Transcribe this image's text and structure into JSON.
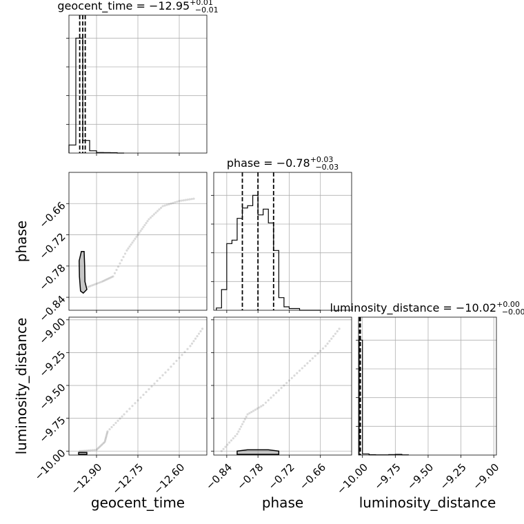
{
  "chart_data": {
    "type": "corner",
    "parameters": [
      "geocent_time",
      "phase",
      "luminosity_distance"
    ],
    "ranges": {
      "geocent_time": [
        -13.0,
        -12.5
      ],
      "phase": [
        -0.865,
        -0.6
      ],
      "luminosity_distance": [
        -10.03,
        -8.98
      ],
      "hist_count_max": [
        0,
        1
      ]
    },
    "titles": [
      {
        "base": "geocent_time = −12.95",
        "upper": "+0.01",
        "lower": "−0.01"
      },
      {
        "base": "phase = −0.78",
        "upper": "+0.03",
        "lower": "−0.03"
      },
      {
        "base": "luminosity_distance = −10.02",
        "upper": "+0.00",
        "lower": "−0.00"
      }
    ],
    "axis_labels": {
      "geocent_time": "geocent_time",
      "phase": "phase",
      "luminosity_distance": "luminosity_distance"
    },
    "ticks": {
      "geocent_time": {
        "values": [
          -12.9,
          -12.75,
          -12.6
        ],
        "labels": [
          "−12.90",
          "−12.75",
          "−12.60"
        ]
      },
      "phase": {
        "values": [
          -0.84,
          -0.78,
          -0.72,
          -0.66
        ],
        "labels": [
          "−0.84",
          "−0.78",
          "−0.72",
          "−0.66"
        ]
      },
      "luminosity_distance": {
        "values": [
          -10.0,
          -9.75,
          -9.5,
          -9.25,
          -9.0
        ],
        "labels": [
          "−10.00",
          "−9.75",
          "−9.50",
          "−9.25",
          "−9.00"
        ]
      },
      "hist_count": {
        "values": [
          0.25,
          0.5,
          0.75,
          1.0
        ]
      }
    },
    "histograms": {
      "geocent_time": {
        "edges": [
          -13.0,
          -12.975,
          -12.95,
          -12.925,
          -12.9,
          -12.875,
          -12.85,
          -12.825,
          -12.8
        ],
        "counts": [
          0.07,
          1.0,
          0.11,
          0.02,
          0.005,
          0.004,
          0.003,
          0,
          0
        ]
      },
      "phase": {
        "edges": [
          -0.86,
          -0.85,
          -0.84,
          -0.83,
          -0.82,
          -0.81,
          -0.8,
          -0.79,
          -0.78,
          -0.77,
          -0.76,
          -0.75,
          -0.74,
          -0.73,
          -0.72,
          -0.71,
          -0.7,
          -0.69,
          -0.68,
          -0.67,
          -0.66
        ],
        "counts": [
          0.02,
          0.18,
          0.58,
          0.61,
          0.8,
          0.89,
          0.91,
          1.0,
          0.83,
          0.88,
          0.76,
          0.52,
          0.11,
          0.03,
          0.015,
          0.015,
          0.0,
          0.0,
          0.0,
          0.0
        ]
      },
      "luminosity_distance": {
        "edges": [
          -10.025,
          -10.0,
          -9.95,
          -9.9,
          -9.85,
          -9.8,
          -9.75,
          -9.7,
          -9.65
        ],
        "counts": [
          1.0,
          0.01,
          0.003,
          0.002,
          0.002,
          0.004,
          0.006,
          0.002
        ]
      }
    },
    "quantiles": {
      "geocent_time": [
        -12.961,
        -12.95,
        -12.941
      ],
      "phase": [
        -0.81,
        -0.78,
        -0.75
      ],
      "luminosity_distance": [
        -10.022,
        -10.02,
        -10.016
      ]
    },
    "contours_2d": {
      "geocent_time_phase": [
        [
          -12.955,
          -0.752
        ],
        [
          -12.945,
          -0.752
        ],
        [
          -12.943,
          -0.78
        ],
        [
          -12.942,
          -0.81
        ],
        [
          -12.935,
          -0.825
        ],
        [
          -12.948,
          -0.832
        ],
        [
          -12.958,
          -0.828
        ],
        [
          -12.962,
          -0.8
        ],
        [
          -12.963,
          -0.77
        ]
      ],
      "geocent_time_luminosity_distance": [
        [
          -12.965,
          -10.01
        ],
        [
          -12.935,
          -10.01
        ],
        [
          -12.935,
          -10.025
        ],
        [
          -12.965,
          -10.025
        ]
      ],
      "phase_luminosity_distance": [
        [
          -0.82,
          -10.0
        ],
        [
          -0.8,
          -9.99
        ],
        [
          -0.76,
          -9.99
        ],
        [
          -0.74,
          -10.0
        ],
        [
          -0.74,
          -10.025
        ],
        [
          -0.82,
          -10.025
        ]
      ]
    },
    "outlier_tracks": {
      "geocent_time_phase": [
        [
          -12.93,
          -0.82
        ],
        [
          -12.88,
          -0.81
        ],
        [
          -12.84,
          -0.8
        ],
        [
          -12.79,
          -0.75
        ],
        [
          -12.75,
          -0.72
        ],
        [
          -12.71,
          -0.69
        ],
        [
          -12.66,
          -0.665
        ],
        [
          -12.6,
          -0.655
        ],
        [
          -12.54,
          -0.65
        ]
      ],
      "geocent_time_luminosity_distance": [
        [
          -12.96,
          -10.0
        ],
        [
          -12.9,
          -9.99
        ],
        [
          -12.87,
          -9.93
        ],
        [
          -12.86,
          -9.85
        ],
        [
          -12.8,
          -9.72
        ],
        [
          -12.72,
          -9.55
        ],
        [
          -12.64,
          -9.38
        ],
        [
          -12.56,
          -9.2
        ],
        [
          -12.51,
          -9.05
        ]
      ],
      "phase_luminosity_distance": [
        [
          -0.85,
          -10.0
        ],
        [
          -0.82,
          -9.87
        ],
        [
          -0.8,
          -9.72
        ],
        [
          -0.77,
          -9.65
        ],
        [
          -0.73,
          -9.5
        ],
        [
          -0.69,
          -9.35
        ],
        [
          -0.65,
          -9.2
        ],
        [
          -0.62,
          -9.05
        ]
      ]
    },
    "grid": true
  }
}
